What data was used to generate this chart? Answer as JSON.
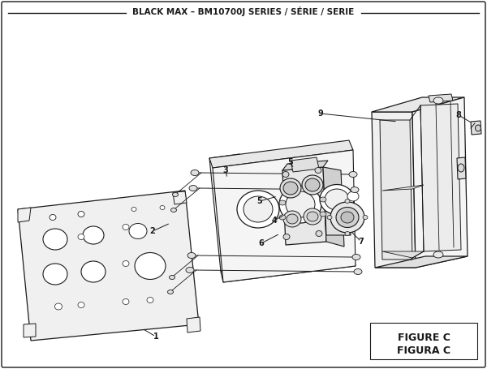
{
  "title": "BLACK MAX – BM10700J SERIES / SÉRIE / SERIE",
  "figure_label": "FIGURE C",
  "figura_label": "FIGURA C",
  "bg_color": "#ffffff",
  "line_color": "#1a1a1a",
  "fig_width": 6.0,
  "fig_height": 4.55,
  "dpi": 100
}
